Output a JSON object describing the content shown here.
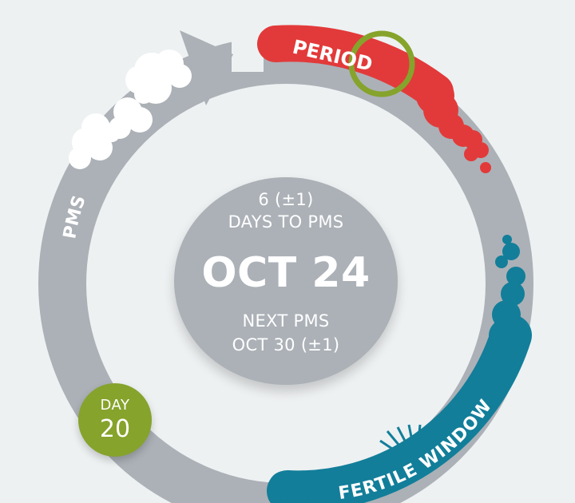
{
  "labels": {
    "period": "PERIOD",
    "pms": "PMS",
    "fertile_window": "FERTILE WINDOW"
  },
  "center": {
    "days_count": "6 (±1)",
    "days_label": "DAYS TO PMS",
    "date": "OCT 24",
    "next_label": "NEXT PMS",
    "next_date": "OCT 30 (±1)"
  },
  "day_badge": {
    "label": "DAY",
    "number": "20"
  },
  "colors": {
    "background": "#eef1f2",
    "ring": "#abb1b7",
    "period": "#e23a3a",
    "ovulation_ring": "#86a32c",
    "fertile": "#127e99",
    "pms": "#ffffff",
    "day_badge": "#86a32c"
  },
  "icons": {
    "cycle_arrow": "cycle-arrow-icon",
    "pms_clouds": "cloud-icon"
  }
}
